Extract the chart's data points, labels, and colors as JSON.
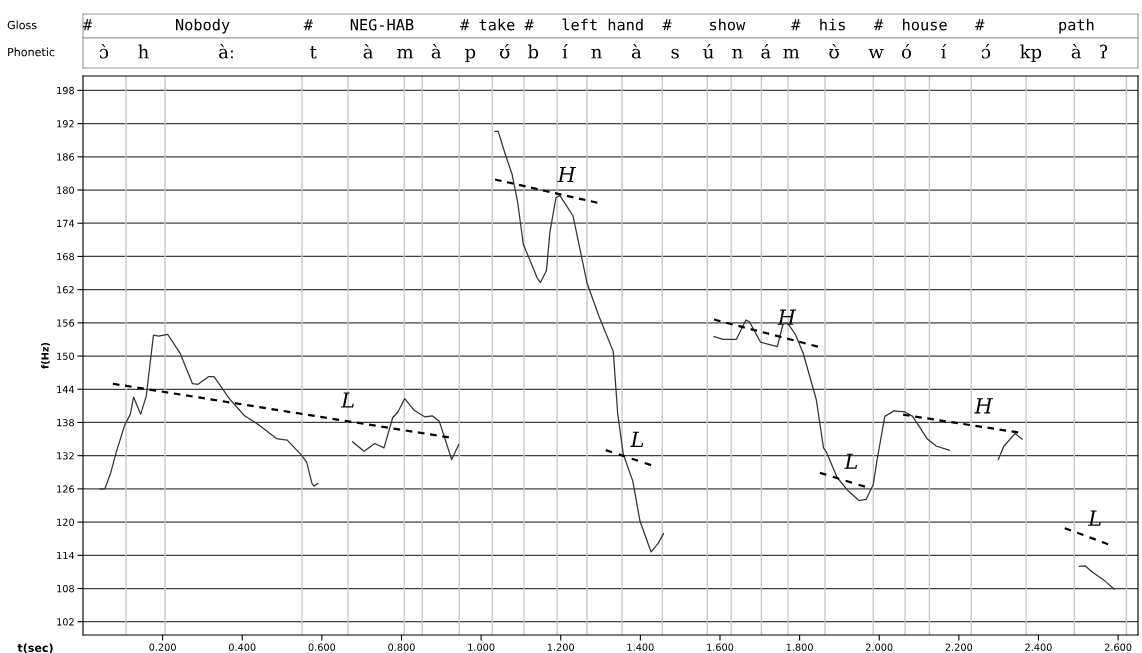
{
  "chart_data": {
    "type": "line",
    "xlabel": "t(sec)",
    "ylabel": "f(Hz)",
    "legend": false,
    "xlim": [
      0,
      2.65
    ],
    "ylim": [
      99.6,
      200.6
    ],
    "xticks": [
      {
        "value": 0.2,
        "label": "0.200"
      },
      {
        "value": 0.4,
        "label": "0.400"
      },
      {
        "value": 0.6,
        "label": "0.600"
      },
      {
        "value": 0.8,
        "label": "0.800"
      },
      {
        "value": 1.0,
        "label": "1.000"
      },
      {
        "value": 1.2,
        "label": "1.200"
      },
      {
        "value": 1.4,
        "label": "1.400"
      },
      {
        "value": 1.6,
        "label": "1.600"
      },
      {
        "value": 1.8,
        "label": "1.800"
      },
      {
        "value": 2.0,
        "label": "2.000"
      },
      {
        "value": 2.2,
        "label": "2.200"
      },
      {
        "value": 2.4,
        "label": "2.400"
      },
      {
        "value": 2.6,
        "label": "2.600"
      }
    ],
    "yticks": [
      102,
      108,
      114,
      120,
      126,
      132,
      138,
      144,
      150,
      156,
      162,
      168,
      174,
      180,
      186,
      192,
      198
    ],
    "grid": "y",
    "series": [
      {
        "color": "#333333",
        "line_style": "solid",
        "x": [
          0.043,
          0.055,
          0.07,
          0.083,
          0.105,
          0.119,
          0.127,
          0.145,
          0.159,
          0.177,
          0.19,
          0.213,
          0.244,
          0.275,
          0.289,
          0.316,
          0.329,
          0.37,
          0.406,
          0.441,
          0.486,
          0.513,
          0.549,
          0.562,
          0.575,
          0.58,
          0.59
        ],
        "values": [
          126,
          126,
          129,
          132.5,
          137.6,
          139.5,
          142.6,
          139.5,
          142.8,
          153.8,
          153.6,
          153.9,
          150.5,
          145,
          144.9,
          146.3,
          146.3,
          142.1,
          139.2,
          137.6,
          135.1,
          134.8,
          132.1,
          130.8,
          127,
          126.5,
          127
        ]
      },
      {
        "color": "#333333",
        "line_style": "solid",
        "x": [
          0.677,
          0.706,
          0.733,
          0.756,
          0.778,
          0.791,
          0.808,
          0.832,
          0.859,
          0.877,
          0.895,
          0.926,
          0.944
        ],
        "values": [
          134.5,
          132.8,
          134.2,
          133.4,
          138.9,
          139.9,
          142.3,
          140.2,
          139,
          139.2,
          138.2,
          131.3,
          134
        ]
      },
      {
        "color": "#333333",
        "line_style": "solid",
        "x": [
          1.035,
          1.043,
          1.06,
          1.078,
          1.092,
          1.106,
          1.141,
          1.149,
          1.164,
          1.173,
          1.188,
          1.198,
          1.231,
          1.266,
          1.296,
          1.332,
          1.343,
          1.357,
          1.381,
          1.399,
          1.427,
          1.445,
          1.458
        ],
        "values": [
          190.6,
          190.6,
          186.6,
          182.8,
          177.7,
          170.2,
          164.1,
          163.3,
          165.4,
          172.5,
          178.6,
          179,
          175.3,
          163.2,
          157.2,
          150.8,
          139.7,
          132.3,
          127.4,
          120.2,
          114.6,
          116.2,
          117.9
        ]
      },
      {
        "color": "#333333",
        "line_style": "solid",
        "x": [
          1.585,
          1.608,
          1.641,
          1.665,
          1.674,
          1.702,
          1.744,
          1.758,
          1.77,
          1.79,
          1.809,
          1.842,
          1.86,
          1.867,
          1.894,
          1.921,
          1.949,
          1.967,
          1.985,
          1.995,
          2.014,
          2.037,
          2.065,
          2.084,
          2.121,
          2.144,
          2.176
        ],
        "values": [
          153.5,
          153,
          153,
          156.5,
          156.2,
          152.5,
          151.7,
          155.7,
          156,
          153.8,
          150.5,
          142.1,
          133.4,
          132.7,
          128.1,
          125.7,
          123.9,
          124.1,
          126.8,
          131.4,
          139.1,
          140.1,
          139.9,
          139.1,
          135,
          133.7,
          133
        ]
      },
      {
        "color": "#333333",
        "line_style": "solid",
        "x": [
          2.299,
          2.313,
          2.341,
          2.359
        ],
        "values": [
          131.3,
          133.7,
          136,
          135
        ]
      },
      {
        "color": "#333333",
        "line_style": "solid",
        "x": [
          2.503,
          2.517,
          2.535,
          2.563,
          2.59
        ],
        "values": [
          112,
          112.1,
          111,
          109.6,
          107.9
        ]
      },
      {
        "name": "L",
        "color": "#000000",
        "line_style": "dashed",
        "x": [
          0.075,
          0.919
        ],
        "values": [
          145,
          135.3
        ]
      },
      {
        "name": "H",
        "color": "#000000",
        "line_style": "dashed",
        "x": [
          1.035,
          1.292
        ],
        "values": [
          181.9,
          177.7
        ]
      },
      {
        "name": "L",
        "color": "#000000",
        "line_style": "dashed",
        "x": [
          1.313,
          1.427
        ],
        "values": [
          133,
          130.3
        ]
      },
      {
        "name": "H",
        "color": "#000000",
        "line_style": "dashed",
        "x": [
          1.585,
          1.846
        ],
        "values": [
          156.6,
          151.7
        ]
      },
      {
        "name": "L",
        "color": "#000000",
        "line_style": "dashed",
        "x": [
          1.851,
          1.964
        ],
        "values": [
          128.9,
          126.4
        ]
      },
      {
        "name": "H",
        "color": "#000000",
        "line_style": "dashed",
        "x": [
          2.06,
          2.349
        ],
        "values": [
          139.4,
          136.2
        ]
      },
      {
        "name": "L",
        "color": "#000000",
        "line_style": "dashed",
        "x": [
          2.466,
          2.575
        ],
        "values": [
          118.9,
          116
        ]
      }
    ],
    "annotations": [
      "Gloss",
      "#         Nobody        #    NEG-HAB     # take #   left hand  #    show     #  his   #  house   #        path",
      "Phonetic",
      "ɔ̀     h            àː             t        à    m   à    p    ʊ́   b    í    n     à     s    ú   n   á  m     ʊ̀     w   ó     í      ɔ́     kp     à   ʔ"
    ],
    "ref_lines": [
      {
        "axis": "x",
        "value": 0.108,
        "color": "#c8c8c8"
      },
      {
        "axis": "x",
        "value": 0.206,
        "color": "#c8c8c8"
      },
      {
        "axis": "x",
        "value": 0.55,
        "color": "#c8c8c8"
      },
      {
        "axis": "x",
        "value": 0.666,
        "color": "#c8c8c8"
      },
      {
        "axis": "x",
        "value": 0.807,
        "color": "#c8c8c8"
      },
      {
        "axis": "x",
        "value": 0.852,
        "color": "#c8c8c8"
      },
      {
        "axis": "x",
        "value": 0.945,
        "color": "#c8c8c8"
      },
      {
        "axis": "x",
        "value": 1.028,
        "color": "#c8c8c8"
      },
      {
        "axis": "x",
        "value": 1.108,
        "color": "#c8c8c8"
      },
      {
        "axis": "x",
        "value": 1.191,
        "color": "#c8c8c8"
      },
      {
        "axis": "x",
        "value": 1.266,
        "color": "#c8c8c8"
      },
      {
        "axis": "x",
        "value": 1.354,
        "color": "#c8c8c8"
      },
      {
        "axis": "x",
        "value": 1.455,
        "color": "#c8c8c8"
      },
      {
        "axis": "x",
        "value": 1.568,
        "color": "#c8c8c8"
      },
      {
        "axis": "x",
        "value": 1.628,
        "color": "#c8c8c8"
      },
      {
        "axis": "x",
        "value": 1.704,
        "color": "#c8c8c8"
      },
      {
        "axis": "x",
        "value": 1.771,
        "color": "#c8c8c8"
      },
      {
        "axis": "x",
        "value": 1.864,
        "color": "#c8c8c8"
      },
      {
        "axis": "x",
        "value": 1.985,
        "color": "#c8c8c8"
      },
      {
        "axis": "x",
        "value": 2.065,
        "color": "#c8c8c8"
      },
      {
        "axis": "x",
        "value": 2.126,
        "color": "#c8c8c8"
      },
      {
        "axis": "x",
        "value": 2.231,
        "color": "#c8c8c8"
      },
      {
        "axis": "x",
        "value": 2.369,
        "color": "#c8c8c8"
      },
      {
        "axis": "x",
        "value": 2.49,
        "color": "#c8c8c8"
      },
      {
        "axis": "x",
        "value": 2.621,
        "color": "#c8c8c8"
      }
    ]
  }
}
